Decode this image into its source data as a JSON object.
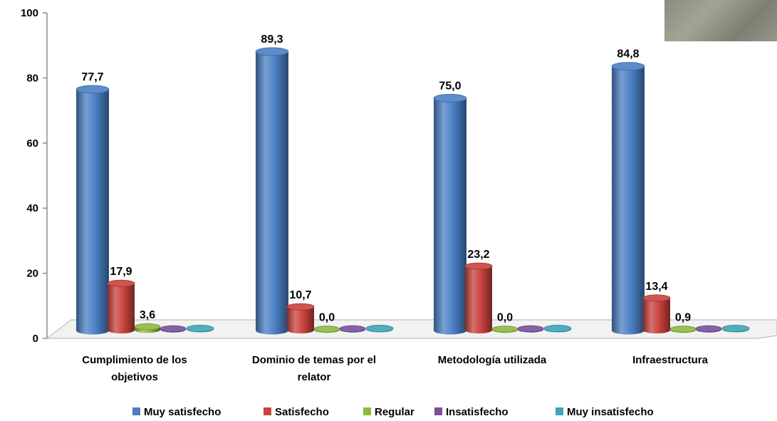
{
  "chart_data": {
    "type": "bar",
    "categories": [
      [
        "Cumplimiento de los",
        "objetivos"
      ],
      [
        "Dominio de temas por el",
        "relator"
      ],
      [
        "Metodología utilizada"
      ],
      [
        "Infraestructura"
      ]
    ],
    "series": [
      {
        "name": "Muy satisfecho",
        "color": "#4a7fc4",
        "values": [
          77.7,
          89.3,
          75.0,
          84.8
        ],
        "labels": [
          "77,7",
          "89,3",
          "75,0",
          "84,8"
        ]
      },
      {
        "name": "Satisfecho",
        "color": "#c9423d",
        "values": [
          17.9,
          10.7,
          23.2,
          13.4
        ],
        "labels": [
          "17,9",
          "10,7",
          "23,2",
          "13,4"
        ]
      },
      {
        "name": "Regular",
        "color": "#8fb83f",
        "values": [
          3.6,
          0.0,
          0.0,
          0.9
        ],
        "labels": [
          "3,6",
          "0,0",
          "0,0",
          "0,9"
        ]
      },
      {
        "name": "Insatisfecho",
        "color": "#7a4f9e",
        "values": [
          1.0,
          0.5,
          2.0,
          1.5
        ],
        "labels": [
          "",
          "",
          "",
          ""
        ]
      },
      {
        "name": "Muy insatisfecho",
        "color": "#3fa5b8",
        "values": [
          0.2,
          0.2,
          0.2,
          0.2
        ],
        "labels": [
          "",
          "",
          "",
          ""
        ]
      }
    ],
    "yticks": [
      "0",
      "20",
      "40",
      "60",
      "80",
      "100"
    ],
    "ylim": [
      0,
      100
    ],
    "legend_position": "bottom",
    "grid": false
  }
}
